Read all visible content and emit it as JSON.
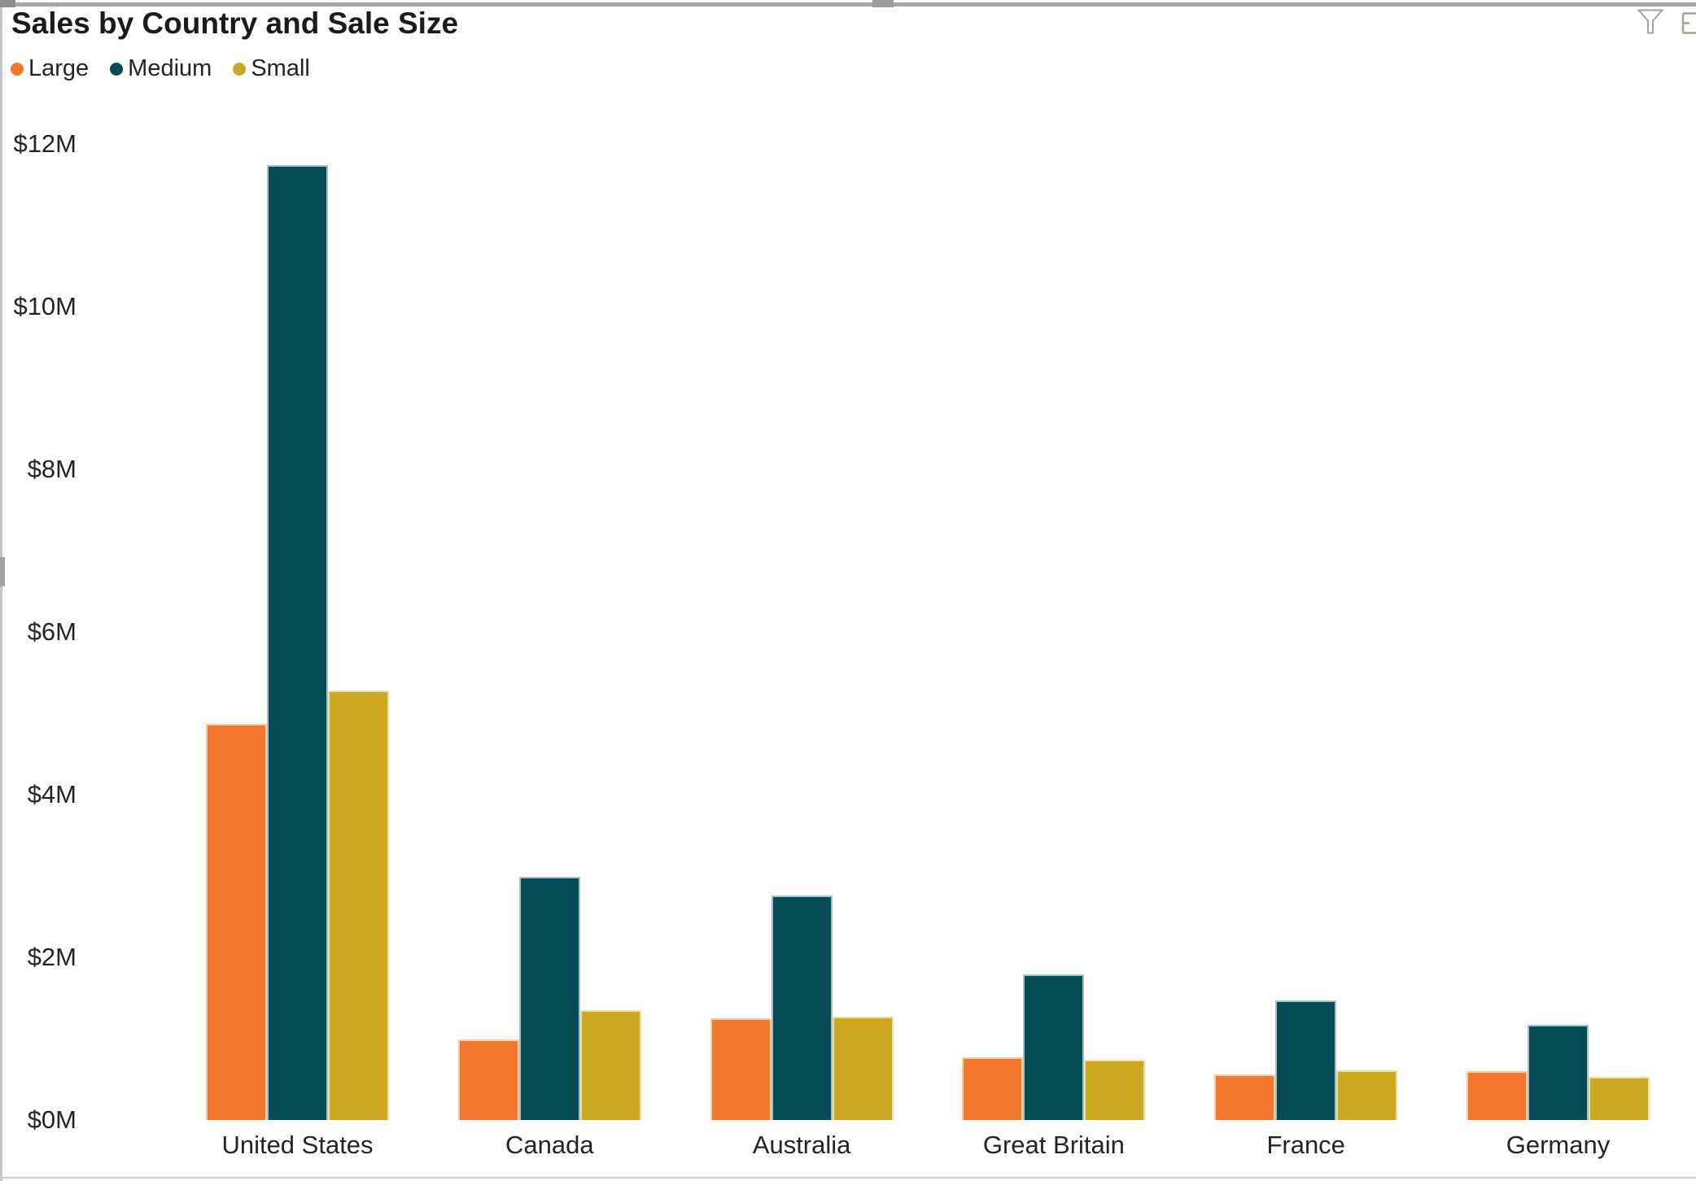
{
  "visual": {
    "title": "Sales by Country and Sale Size",
    "header_icons": [
      {
        "name": "filter-icon"
      },
      {
        "name": "clipped-header-icon"
      }
    ]
  },
  "legend": {
    "items": [
      {
        "label": "Large",
        "color": "#F0772B"
      },
      {
        "label": "Medium",
        "color": "#054B55"
      },
      {
        "label": "Small",
        "color": "#CCA821"
      }
    ]
  },
  "chart_data": {
    "type": "bar",
    "title": "Sales by Country and Sale Size",
    "categories": [
      "United States",
      "Canada",
      "Australia",
      "Great Britain",
      "France",
      "Germany"
    ],
    "series": [
      {
        "name": "Large",
        "color": "#F0772B",
        "border_color": "#F8CDA6",
        "values": [
          4.87,
          0.99,
          1.25,
          0.77,
          0.56,
          0.6
        ]
      },
      {
        "name": "Medium",
        "color": "#054B55",
        "border_color": "#A9BFC6",
        "values": [
          11.74,
          2.99,
          2.76,
          1.79,
          1.47,
          1.17
        ]
      },
      {
        "name": "Small",
        "color": "#CCA821",
        "border_color": "#EBDFAA",
        "values": [
          5.28,
          1.35,
          1.27,
          0.74,
          0.61,
          0.53
        ]
      }
    ],
    "units": "$M",
    "xlabel": "",
    "ylabel": "",
    "y_axis": {
      "ticks": [
        {
          "label": "$0M",
          "value": 0
        },
        {
          "label": "$2M",
          "value": 2
        },
        {
          "label": "$4M",
          "value": 4
        },
        {
          "label": "$6M",
          "value": 6
        },
        {
          "label": "$8M",
          "value": 8
        },
        {
          "label": "$10M",
          "value": 10
        },
        {
          "label": "$12M",
          "value": 12
        }
      ],
      "range": [
        0,
        12
      ]
    },
    "grid": false,
    "legend_position": "top-left"
  }
}
